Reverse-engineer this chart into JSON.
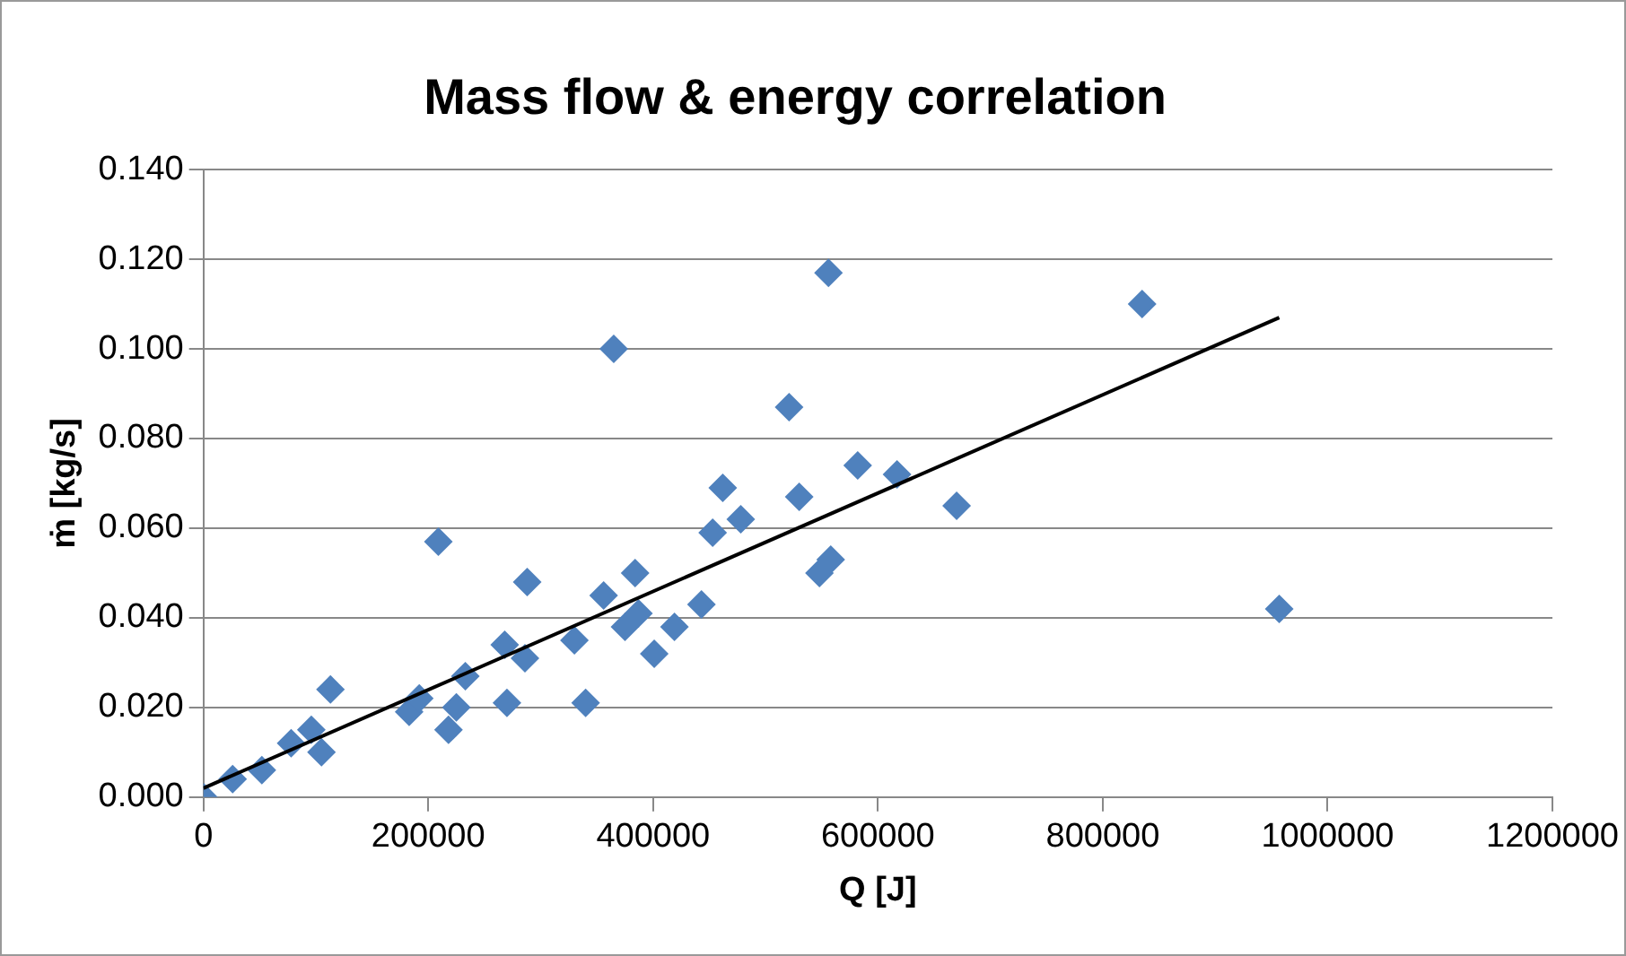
{
  "chart_data": {
    "type": "scatter",
    "title": "Mass flow & energy correlation",
    "xlabel": "Q [J]",
    "ylabel": "ṁ [kg/s]",
    "xlim": [
      0,
      1200000
    ],
    "xticks": [
      0,
      200000,
      400000,
      600000,
      800000,
      1000000,
      1200000
    ],
    "ylim": [
      0,
      0.14
    ],
    "yticks": [
      {
        "value": 0,
        "label": "0.000"
      },
      {
        "value": 0.02,
        "label": "0.020"
      },
      {
        "value": 0.04,
        "label": "0.040"
      },
      {
        "value": 0.06,
        "label": "0.060"
      },
      {
        "value": 0.08,
        "label": "0.080"
      },
      {
        "value": 0.1,
        "label": "0.100"
      },
      {
        "value": 0.12,
        "label": "0.120"
      },
      {
        "value": 0.14,
        "label": "0.140"
      }
    ],
    "grid": "y",
    "legend": false,
    "marker": "diamond",
    "series": [
      {
        "type": "scatter",
        "color": "#4f81bd",
        "x": [
          0,
          26000,
          52000,
          78000,
          96000,
          105000,
          113000,
          183000,
          192000,
          218000,
          225000,
          233000,
          209000,
          270000,
          268000,
          286000,
          288000,
          330000,
          340000,
          356000,
          375000,
          384000,
          387000,
          401000,
          419000,
          443000,
          453000,
          365000,
          556000,
          521000,
          462000,
          478000,
          530000,
          582000,
          617000,
          670000,
          548000,
          558000,
          835000,
          957000
        ],
        "values": [
          0,
          0.004,
          0.006,
          0.012,
          0.015,
          0.01,
          0.024,
          0.019,
          0.022,
          0.015,
          0.02,
          0.027,
          0.057,
          0.021,
          0.034,
          0.031,
          0.048,
          0.035,
          0.021,
          0.045,
          0.038,
          0.05,
          0.041,
          0.032,
          0.038,
          0.043,
          0.059,
          0.1,
          0.117,
          0.087,
          0.069,
          0.062,
          0.067,
          0.074,
          0.072,
          0.065,
          0.05,
          0.053,
          0.11,
          0.042
        ]
      },
      {
        "type": "line",
        "color": "#000000",
        "marker": "none",
        "x": [
          0,
          957000
        ],
        "values": [
          0.002,
          0.107
        ]
      }
    ]
  }
}
